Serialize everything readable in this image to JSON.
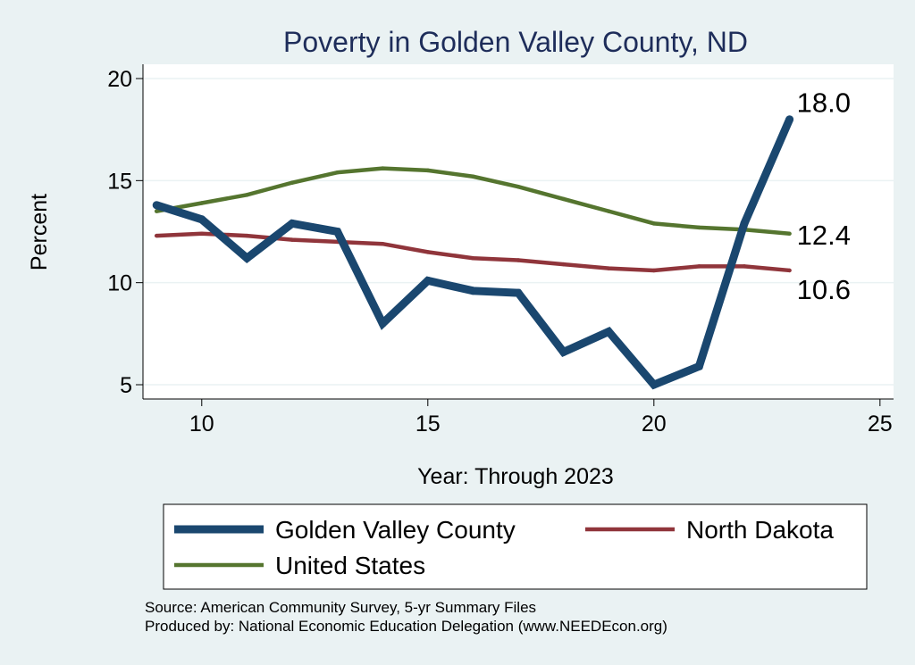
{
  "chart_data": {
    "type": "line",
    "title": "Poverty in Golden Valley County, ND",
    "xlabel": "Year: Through 2023",
    "ylabel": "Percent",
    "xlim": [
      8.7,
      25.3
    ],
    "ylim": [
      4.3,
      20.7
    ],
    "xticks": [
      10,
      15,
      20,
      25
    ],
    "yticks": [
      5,
      10,
      15,
      20
    ],
    "grid": true,
    "legend_position": "bottom",
    "x": [
      9,
      10,
      11,
      12,
      13,
      14,
      15,
      16,
      17,
      18,
      19,
      20,
      21,
      22,
      23
    ],
    "series": [
      {
        "name": "Golden Valley County",
        "color": "#1a476f",
        "end_label": "18.0",
        "values": [
          13.8,
          13.1,
          11.2,
          12.9,
          12.5,
          8.0,
          10.1,
          9.6,
          9.5,
          6.6,
          7.6,
          5.0,
          5.9,
          12.9,
          18.0
        ]
      },
      {
        "name": "North Dakota",
        "color": "#90353b",
        "end_label": "10.6",
        "values": [
          12.3,
          12.4,
          12.3,
          12.1,
          12.0,
          11.9,
          11.5,
          11.2,
          11.1,
          10.9,
          10.7,
          10.6,
          10.8,
          10.8,
          10.6
        ]
      },
      {
        "name": "United States",
        "color": "#55752f",
        "end_label": "12.4",
        "values": [
          13.5,
          13.9,
          14.3,
          14.9,
          15.4,
          15.6,
          15.5,
          15.2,
          14.7,
          14.1,
          13.5,
          12.9,
          12.7,
          12.6,
          12.4
        ]
      }
    ]
  },
  "footer": {
    "source": "Source: American Community Survey, 5-yr Summary Files",
    "produced": "Produced by: National Economic Education Delegation (www.NEEDEcon.org)"
  }
}
